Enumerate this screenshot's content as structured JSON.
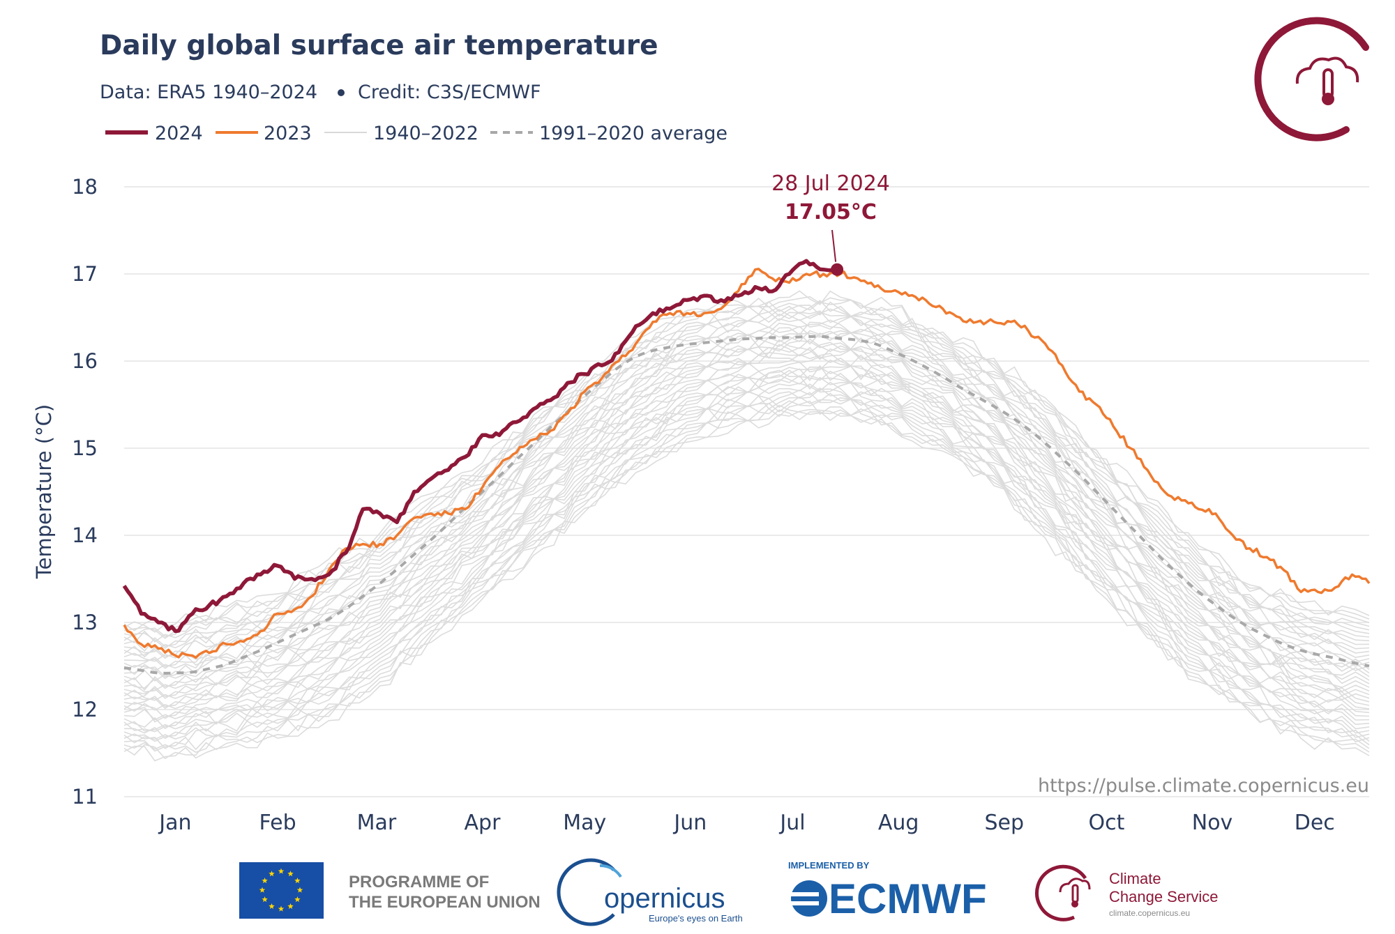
{
  "header": {
    "title": "Daily global surface air temperature",
    "subtitle_data": "Data: ERA5 1940–2024",
    "subtitle_credit": "Credit: C3S/ECMWF"
  },
  "legend": [
    {
      "label": "2024",
      "color": "#8e1838",
      "style": "solid-thick"
    },
    {
      "label": "2023",
      "color": "#ef7a2e",
      "style": "solid"
    },
    {
      "label": "1940–2022",
      "color": "#dcdcdc",
      "style": "solid-thin"
    },
    {
      "label": "1991–2020 average",
      "color": "#a8a8a8",
      "style": "dashed"
    }
  ],
  "annotation": {
    "date": "28 Jul 2024",
    "value": "17.05°C"
  },
  "source_url": "https://pulse.climate.copernicus.eu",
  "footer": {
    "eu_line1": "PROGRAMME OF",
    "eu_line2": "THE EUROPEAN UNION",
    "copernicus_name": "opernicus",
    "copernicus_tagline": "Europe's eyes on Earth",
    "ecmwf_small": "IMPLEMENTED BY",
    "ecmwf_name": "ECMWF",
    "c3s_line1": "Climate",
    "c3s_line2": "Change Service",
    "c3s_url": "climate.copernicus.eu"
  },
  "colors": {
    "y2024": "#8e1838",
    "y2023": "#ef7a2e",
    "historical": "#dcdcdc",
    "average": "#a8a8a8",
    "grid": "#e4e4e4",
    "text": "#2a3b5c"
  },
  "icons": [
    "thermometer-cloud-logo-icon",
    "eu-flag-icon",
    "copernicus-logo-icon",
    "ecmwf-logo-icon",
    "c3s-logo-icon"
  ],
  "chart_data": {
    "type": "line",
    "title": "Daily global surface air temperature",
    "ylabel": "Temperature (°C)",
    "xlabel": "",
    "ylim": [
      11,
      18
    ],
    "yticks": [
      11,
      12,
      13,
      14,
      15,
      16,
      17,
      18
    ],
    "xlim_day_of_year": [
      1,
      366
    ],
    "xticks": [
      {
        "label": "Jan",
        "day": 16
      },
      {
        "label": "Feb",
        "day": 46
      },
      {
        "label": "Mar",
        "day": 75
      },
      {
        "label": "Apr",
        "day": 106
      },
      {
        "label": "May",
        "day": 136
      },
      {
        "label": "Jun",
        "day": 167
      },
      {
        "label": "Jul",
        "day": 197
      },
      {
        "label": "Aug",
        "day": 228
      },
      {
        "label": "Sep",
        "day": 259
      },
      {
        "label": "Oct",
        "day": 289
      },
      {
        "label": "Nov",
        "day": 320
      },
      {
        "label": "Dec",
        "day": 350
      }
    ],
    "grid": true,
    "legend_position": "top-left",
    "series": [
      {
        "name": "1991–2020 average",
        "x": [
          1,
          6,
          11,
          16,
          21,
          26,
          31,
          36,
          41,
          46,
          51,
          56,
          61,
          66,
          71,
          76,
          81,
          86,
          91,
          96,
          101,
          106,
          111,
          116,
          121,
          126,
          131,
          136,
          141,
          146,
          151,
          156,
          161,
          166,
          171,
          176,
          181,
          186,
          191,
          196,
          201,
          206,
          211,
          216,
          221,
          226,
          231,
          236,
          241,
          246,
          251,
          256,
          261,
          266,
          271,
          276,
          281,
          286,
          291,
          296,
          301,
          306,
          311,
          316,
          321,
          326,
          331,
          336,
          341,
          346,
          351,
          356,
          361,
          366
        ],
        "y": [
          12.48,
          12.45,
          12.42,
          12.42,
          12.43,
          12.47,
          12.52,
          12.6,
          12.68,
          12.77,
          12.86,
          12.95,
          13.04,
          13.16,
          13.3,
          13.45,
          13.61,
          13.78,
          13.95,
          14.13,
          14.32,
          14.5,
          14.68,
          14.87,
          15.05,
          15.24,
          15.42,
          15.6,
          15.77,
          15.93,
          16.05,
          16.12,
          16.16,
          16.19,
          16.21,
          16.23,
          16.25,
          16.26,
          16.27,
          16.27,
          16.28,
          16.28,
          16.26,
          16.24,
          16.2,
          16.12,
          16.03,
          15.93,
          15.82,
          15.7,
          15.59,
          15.48,
          15.36,
          15.22,
          15.06,
          14.88,
          14.7,
          14.5,
          14.3,
          14.1,
          13.9,
          13.7,
          13.52,
          13.35,
          13.2,
          13.06,
          12.94,
          12.84,
          12.75,
          12.68,
          12.63,
          12.59,
          12.54,
          12.5
        ]
      },
      {
        "name": "2023",
        "x": [
          1,
          6,
          11,
          16,
          21,
          26,
          31,
          36,
          41,
          46,
          51,
          56,
          61,
          66,
          71,
          76,
          81,
          86,
          91,
          96,
          101,
          106,
          111,
          116,
          121,
          126,
          131,
          136,
          141,
          146,
          151,
          156,
          161,
          166,
          171,
          176,
          181,
          186,
          191,
          196,
          201,
          206,
          211,
          216,
          221,
          226,
          231,
          236,
          241,
          246,
          251,
          256,
          261,
          266,
          271,
          276,
          281,
          286,
          291,
          296,
          301,
          306,
          311,
          316,
          321,
          326,
          331,
          336,
          341,
          346,
          351,
          356,
          361,
          366
        ],
        "y": [
          12.97,
          12.75,
          12.7,
          12.62,
          12.62,
          12.65,
          12.75,
          12.78,
          12.9,
          13.1,
          13.15,
          13.3,
          13.6,
          13.85,
          13.9,
          13.9,
          14.0,
          14.2,
          14.25,
          14.25,
          14.3,
          14.55,
          14.8,
          14.95,
          15.1,
          15.2,
          15.4,
          15.65,
          15.8,
          16.0,
          16.2,
          16.45,
          16.55,
          16.55,
          16.55,
          16.6,
          16.8,
          17.05,
          16.95,
          16.9,
          17.0,
          17.0,
          17.0,
          16.95,
          16.85,
          16.8,
          16.75,
          16.7,
          16.6,
          16.5,
          16.45,
          16.45,
          16.45,
          16.35,
          16.2,
          15.95,
          15.65,
          15.5,
          15.25,
          15.0,
          14.75,
          14.5,
          14.4,
          14.3,
          14.25,
          14.0,
          13.85,
          13.75,
          13.6,
          13.35,
          13.35,
          13.4,
          13.55,
          13.45
        ]
      },
      {
        "name": "2024",
        "x": [
          1,
          6,
          11,
          16,
          21,
          26,
          31,
          36,
          41,
          46,
          51,
          56,
          61,
          66,
          71,
          76,
          81,
          86,
          91,
          96,
          101,
          106,
          111,
          116,
          121,
          126,
          131,
          136,
          141,
          146,
          151,
          156,
          161,
          166,
          171,
          176,
          181,
          186,
          191,
          196,
          201,
          206,
          210
        ],
        "y": [
          13.42,
          13.1,
          13.0,
          12.9,
          13.1,
          13.2,
          13.3,
          13.45,
          13.55,
          13.65,
          13.5,
          13.5,
          13.55,
          13.8,
          14.3,
          14.25,
          14.15,
          14.5,
          14.65,
          14.75,
          14.9,
          15.15,
          15.15,
          15.3,
          15.45,
          15.55,
          15.75,
          15.85,
          15.95,
          16.1,
          16.4,
          16.55,
          16.6,
          16.7,
          16.75,
          16.7,
          16.75,
          16.85,
          16.8,
          17.0,
          17.15,
          17.05,
          17.05
        ]
      }
    ],
    "historical_band": {
      "name": "1940–2022",
      "description_range_only": true,
      "x": [
        1,
        16,
        31,
        46,
        61,
        76,
        91,
        106,
        121,
        136,
        151,
        166,
        181,
        196,
        211,
        226,
        241,
        256,
        271,
        286,
        301,
        316,
        331,
        346,
        366
      ],
      "y_low": [
        11.5,
        11.45,
        11.55,
        11.65,
        11.85,
        12.25,
        12.75,
        13.25,
        13.75,
        14.25,
        14.7,
        15.05,
        15.25,
        15.35,
        15.35,
        15.2,
        14.95,
        14.55,
        13.95,
        13.35,
        12.8,
        12.3,
        11.95,
        11.65,
        11.45
      ],
      "y_high": [
        13.0,
        13.0,
        13.2,
        13.35,
        13.75,
        14.05,
        14.5,
        14.85,
        15.4,
        15.85,
        16.3,
        16.6,
        16.7,
        16.75,
        16.75,
        16.65,
        16.35,
        16.05,
        15.6,
        15.0,
        14.45,
        13.9,
        13.45,
        13.25,
        13.1
      ]
    }
  }
}
